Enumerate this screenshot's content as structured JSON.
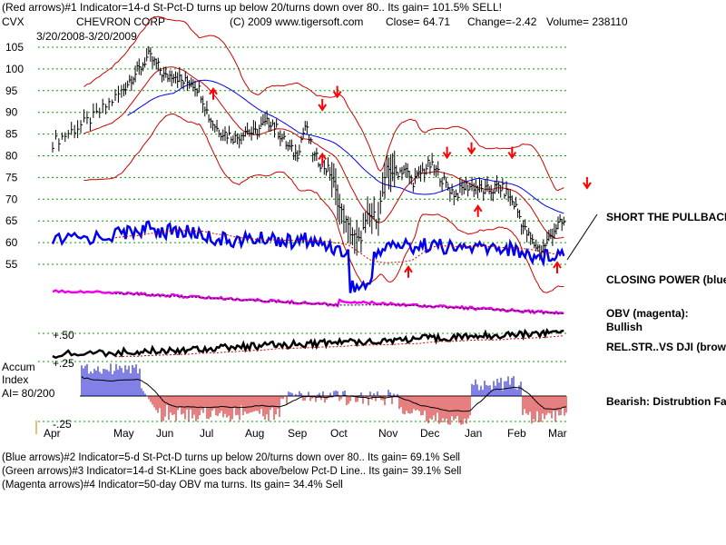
{
  "header": {
    "line1": "(Red arrows)#1 Indicator=14-d St-Pct-D turns up below 20/turns down over 80.. Its gain= 101.5% SELL!",
    "symbol": "CVX",
    "company": "CHEVRON CORP",
    "copyright": "(C) 2009 www.tigersoft.com",
    "close": "Close=  64.71",
    "change": "Change=-2.42",
    "volume": "Volume=  238110",
    "date_range": "3/20/2008-3/20/2009"
  },
  "side_labels": {
    "short_pullback": "SHORT THE PULLBACK",
    "closing_power": "CLOSING POWER (blue)",
    "obv_title": "OBV (magenta):",
    "obv_status": "Bullish",
    "relstr": "REL.STR..VS DJI (brown)",
    "bearish": "Bearish: Distrubtion Falling"
  },
  "accum_labels": {
    "title": "Accum",
    "subtitle": "Index",
    "ai": "AI= 80/200",
    "plus50": "+.50",
    "plus25": "+.25",
    "minus25": "-.25"
  },
  "footer": [
    "(Blue arrows)#2 Indicator=5-d St-Pct-D turns up below 20/turns down over 80.. Its gain= 69.1% Sell",
    "(Green arrows)#3 Indicator=14-d St-KLine goes back above/below Pct-D Line.. Its gain= 39.1% Sell",
    "(Magenta arrows)#4 Indicator=50-day OBV ma turns. Its gain= 34.4% Sell"
  ],
  "colors": {
    "price": "#000000",
    "bollinger": "#cc0000",
    "ma_blue": "#0000ee",
    "closing_power": "#0000ee",
    "obv": "#ee00ee",
    "relstr": "#000000",
    "accum_pos": "#0000cc",
    "accum_neg": "#cc0000",
    "grid": "#00a000",
    "arrow": "#ff0000"
  },
  "chart_data": {
    "type": "line",
    "title": "CHEVRON CORP",
    "x_labels": [
      "Apr",
      "May",
      "Jun",
      "Jul",
      "Aug",
      "Sep",
      "Oct",
      "Nov",
      "Dec",
      "Jan",
      "Feb",
      "Mar"
    ],
    "y_ticks": [
      105,
      100,
      95,
      90,
      85,
      80,
      75,
      70,
      65,
      60,
      55
    ],
    "ylim": [
      51,
      107
    ],
    "grid": true,
    "price_series": {
      "name": "CVX",
      "points": [
        [
          0,
          83
        ],
        [
          0.2,
          85
        ],
        [
          0.4,
          87
        ],
        [
          0.6,
          89
        ],
        [
          0.8,
          92
        ],
        [
          1.0,
          95
        ],
        [
          1.2,
          98
        ],
        [
          1.4,
          100
        ],
        [
          1.6,
          103
        ],
        [
          1.8,
          101
        ],
        [
          2.0,
          98
        ],
        [
          2.2,
          99
        ],
        [
          2.4,
          97
        ],
        [
          2.6,
          97
        ],
        [
          2.8,
          95
        ],
        [
          3.0,
          89
        ],
        [
          3.2,
          86
        ],
        [
          3.4,
          85
        ],
        [
          3.6,
          84
        ],
        [
          3.8,
          86
        ],
        [
          4.0,
          85
        ],
        [
          4.2,
          87
        ],
        [
          4.4,
          88
        ],
        [
          4.6,
          85
        ],
        [
          4.8,
          82
        ],
        [
          5.0,
          80
        ],
        [
          5.2,
          87
        ],
        [
          5.4,
          80
        ],
        [
          5.6,
          78
        ],
        [
          5.8,
          76
        ],
        [
          6.0,
          68
        ],
        [
          6.2,
          63
        ],
        [
          6.4,
          60
        ],
        [
          6.6,
          66
        ],
        [
          6.8,
          66
        ],
        [
          7.0,
          77
        ],
        [
          7.2,
          76
        ],
        [
          7.4,
          77
        ],
        [
          7.6,
          74
        ],
        [
          7.8,
          76
        ],
        [
          8.0,
          78
        ],
        [
          8.2,
          76
        ],
        [
          8.4,
          73
        ],
        [
          8.6,
          71
        ],
        [
          8.8,
          73
        ],
        [
          9.0,
          73
        ],
        [
          9.2,
          72
        ],
        [
          9.4,
          72
        ],
        [
          9.6,
          73
        ],
        [
          9.8,
          71
        ],
        [
          10.0,
          68
        ],
        [
          10.2,
          63
        ],
        [
          10.4,
          60
        ],
        [
          10.6,
          58
        ],
        [
          10.8,
          61
        ],
        [
          11.0,
          64
        ],
        [
          11.2,
          64.71
        ]
      ]
    },
    "red_arrows_down": [
      [
        5.6,
        91
      ],
      [
        5.95,
        94
      ],
      [
        8.95,
        81
      ],
      [
        8.4,
        80
      ],
      [
        9.9,
        80
      ],
      [
        11.7,
        73
      ]
    ],
    "red_arrows_up": [
      [
        3.1,
        95
      ],
      [
        5.6,
        80
      ],
      [
        7.5,
        54
      ],
      [
        9.1,
        68
      ],
      [
        11.0,
        55
      ]
    ]
  }
}
